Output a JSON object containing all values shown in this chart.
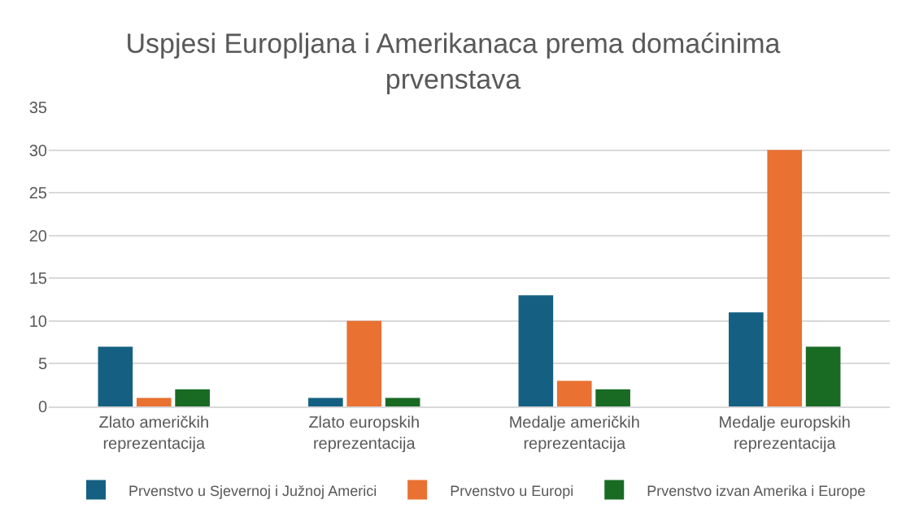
{
  "chart_data": {
    "type": "bar",
    "title": "Uspjesi Europljana i Amerikanaca prema domaćinima prvenstava",
    "categories": [
      "Zlato američkih reprezentacija",
      "Zlato europskih reprezentacija",
      "Medalje američkih reprezentacija",
      "Medalje europskih reprezentacija"
    ],
    "series": [
      {
        "name": "Prvenstvo u Sjevernoj i Južnoj Americi",
        "color": "#156082",
        "values": [
          7,
          1,
          13,
          11
        ]
      },
      {
        "name": "Prvenstvo u Europi",
        "color": "#e97132",
        "values": [
          1,
          10,
          3,
          30
        ]
      },
      {
        "name": "Prvenstvo izvan Amerika i Europe",
        "color": "#196b24",
        "values": [
          2,
          1,
          2,
          7
        ]
      }
    ],
    "ylim": [
      0,
      35
    ],
    "yticks": [
      0,
      5,
      10,
      15,
      20,
      25,
      30,
      35
    ],
    "grid": "y",
    "legend": "bottom"
  }
}
